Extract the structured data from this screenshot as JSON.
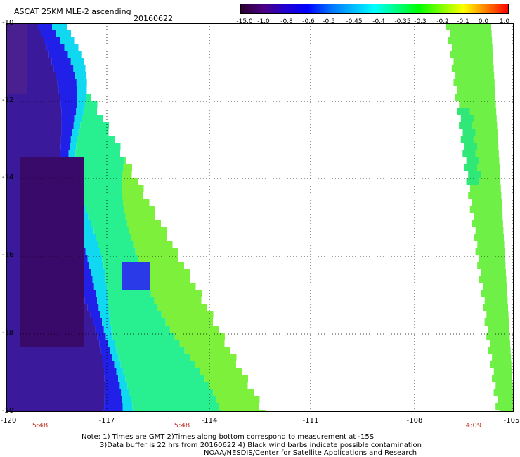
{
  "title": "ASCAT 25KM MLE-2 ascending",
  "date": "20160622",
  "colorbar": {
    "labels": [
      "-15.0",
      "-1.0",
      "-0.8",
      "-0.6",
      "-0.5",
      "-0.45",
      "-0.4",
      "-0.35",
      "-0.3",
      "-0.2",
      "-0.1",
      "0.0",
      "1.0"
    ],
    "colors": [
      "#2a0030",
      "#4b0082",
      "#2000d0",
      "#0000ff",
      "#0070ff",
      "#00b8ff",
      "#00ffff",
      "#00ff80",
      "#00ff00",
      "#80ff00",
      "#ffff00",
      "#ff8000",
      "#ff0000"
    ]
  },
  "axes": {
    "y_ticks": [
      "-10",
      "-12",
      "-14",
      "-16",
      "-18",
      "-20"
    ],
    "x_ticks": [
      "-120",
      "-117",
      "-114",
      "-111",
      "-108",
      "-105"
    ]
  },
  "time_labels": [
    "5:48",
    "5:48",
    "4:09"
  ],
  "notes": [
    "Note: 1) Times are GMT 2)Times along bottom correspond to measurement at -15S",
    "3)Data buffer is 22 hrs from 20160622 4) Black wind barbs indicate possible contamination",
    "NOAA/NESDIS/Center for Satellite Applications and Research"
  ]
}
